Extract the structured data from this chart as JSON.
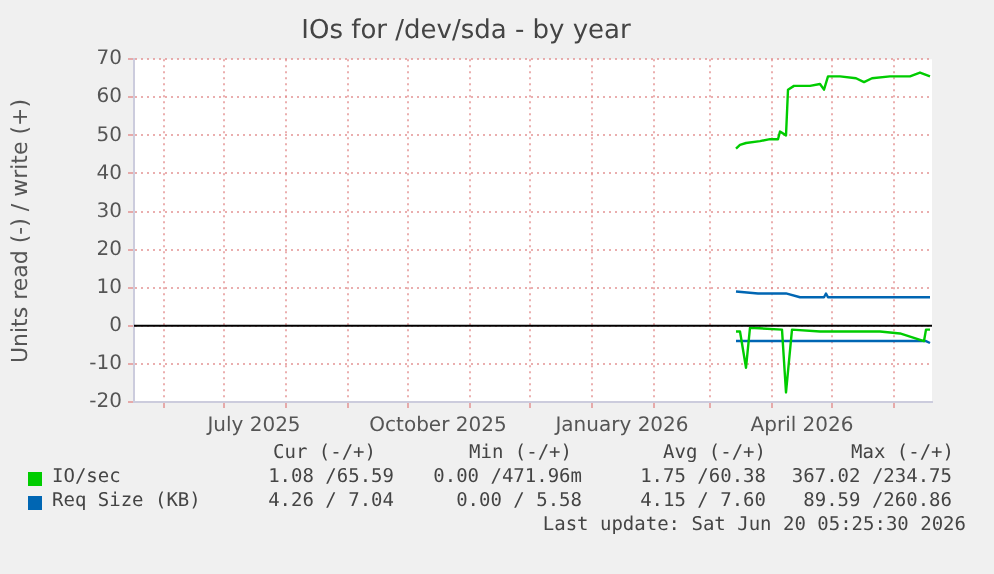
{
  "chart_data": {
    "type": "line",
    "title": "IOs for /dev/sda - by year",
    "ylabel": "Units read (-) / write (+)",
    "xlim": [
      "2025-05-17",
      "2026-06-20"
    ],
    "xticks": [
      {
        "value": "2025-06-01",
        "label": null
      },
      {
        "value": "2025-07-01",
        "label": null
      },
      {
        "value": "2025-07-16",
        "label": "July 2025"
      },
      {
        "value": "2025-08-01",
        "label": null
      },
      {
        "value": "2025-09-01",
        "label": null
      },
      {
        "value": "2025-10-01",
        "label": null
      },
      {
        "value": "2025-10-16",
        "label": "October 2025"
      },
      {
        "value": "2025-11-01",
        "label": null
      },
      {
        "value": "2025-12-01",
        "label": null
      },
      {
        "value": "2026-01-01",
        "label": null
      },
      {
        "value": "2026-01-16",
        "label": "January 2026"
      },
      {
        "value": "2026-02-01",
        "label": null
      },
      {
        "value": "2026-03-01",
        "label": null
      },
      {
        "value": "2026-04-01",
        "label": null
      },
      {
        "value": "2026-04-16",
        "label": "April 2026"
      },
      {
        "value": "2026-05-01",
        "label": null
      },
      {
        "value": "2026-06-01",
        "label": null
      }
    ],
    "ylim": [
      -20,
      70
    ],
    "yticks": [
      -20,
      -10,
      0,
      10,
      20,
      30,
      40,
      50,
      60,
      70
    ],
    "grid": true,
    "legend": "bottom",
    "ref_lines": [
      {
        "axis": "y",
        "value": 0,
        "color": "#000000"
      }
    ],
    "series": [
      {
        "name": "IO/sec",
        "color": "#00cc00",
        "x": [
          "2026-03-14",
          "2026-03-16",
          "2026-03-19",
          "2026-03-26",
          "2026-03-31",
          "2026-04-04",
          "2026-04-05",
          "2026-04-08",
          "2026-04-09",
          "2026-04-12",
          "2026-04-20",
          "2026-04-25",
          "2026-04-27",
          "2026-04-29",
          "2026-05-05",
          "2026-05-13",
          "2026-05-17",
          "2026-05-21",
          "2026-05-30",
          "2026-06-09",
          "2026-06-14",
          "2026-06-19"
        ],
        "values": [
          46.5,
          47.5,
          48,
          48.5,
          49,
          49,
          51,
          50,
          62,
          63,
          63,
          63.5,
          62,
          65.5,
          65.5,
          65,
          64,
          65,
          65.5,
          65.5,
          66.5,
          65.5
        ]
      },
      {
        "color": "#00cc00",
        "x": [
          "2026-03-14",
          "2026-03-16",
          "2026-03-19",
          "2026-03-21",
          "2026-04-06",
          "2026-04-08",
          "2026-04-11",
          "2026-04-25",
          "2026-05-25",
          "2026-06-04",
          "2026-06-16",
          "2026-06-17",
          "2026-06-19"
        ],
        "values": [
          -1.5,
          -1.5,
          -11,
          -0.5,
          -1,
          -17.5,
          -1,
          -1.5,
          -1.5,
          -2,
          -4,
          -1,
          -1
        ]
      },
      {
        "name": "Req Size (KB)",
        "color": "#0066b3",
        "x": [
          "2026-03-14",
          "2026-03-25",
          "2026-04-08",
          "2026-04-15",
          "2026-04-27",
          "2026-04-28",
          "2026-04-29",
          "2026-05-20",
          "2026-06-19"
        ],
        "values": [
          9,
          8.5,
          8.5,
          7.5,
          7.5,
          8.5,
          7.5,
          7.5,
          7.5
        ]
      },
      {
        "color": "#0066b3",
        "x": [
          "2026-03-14",
          "2026-04-20",
          "2026-05-20",
          "2026-06-17",
          "2026-06-19"
        ],
        "values": [
          -4,
          -4,
          -4,
          -4,
          -4.5
        ]
      }
    ],
    "annotations": [
      "Cur (-/+)",
      "Min (-/+)",
      "Avg (-/+)",
      "Max (-/+)",
      "1.08 /65.59",
      "0.00 /471.96m",
      "1.75 /60.38",
      "367.02 /234.75",
      "4.26 / 7.04",
      "0.00 / 5.58",
      "4.15 / 7.60",
      "89.59 /260.86",
      "Last update: Sat Jun 20 05:25:30 2026"
    ]
  }
}
